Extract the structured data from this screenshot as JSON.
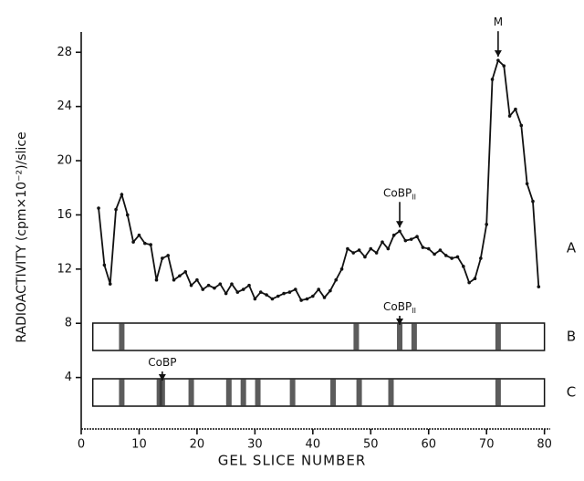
{
  "chart_data": {
    "type": "line",
    "x_label": "GEL SLICE NUMBER",
    "y_label": "RADIOACTIVITY (cpm×10⁻²)/slice",
    "xlim": [
      0,
      81
    ],
    "ylim": [
      0,
      29.5
    ],
    "xticks": [
      0,
      10,
      20,
      30,
      40,
      50,
      60,
      70,
      80
    ],
    "yticks": [
      4,
      8,
      12,
      16,
      20,
      24,
      28
    ],
    "series": [
      {
        "name": "A",
        "color": "#111111",
        "x": [
          3,
          4,
          5,
          6,
          7,
          8,
          9,
          10,
          11,
          12,
          13,
          14,
          15,
          16,
          17,
          18,
          19,
          20,
          21,
          22,
          23,
          24,
          25,
          26,
          27,
          28,
          29,
          30,
          31,
          32,
          33,
          34,
          35,
          36,
          37,
          38,
          39,
          40,
          41,
          42,
          43,
          44,
          45,
          46,
          47,
          48,
          49,
          50,
          51,
          52,
          53,
          54,
          55,
          56,
          57,
          58,
          59,
          60,
          61,
          62,
          63,
          64,
          65,
          66,
          67,
          68,
          69,
          70,
          71,
          72,
          73,
          74,
          75,
          76,
          77,
          78,
          79
        ],
        "values": [
          16.5,
          12.3,
          10.9,
          16.4,
          17.5,
          16,
          14,
          14.5,
          13.9,
          13.8,
          11.2,
          12.8,
          13,
          11.2,
          11.5,
          11.8,
          10.8,
          11.2,
          10.5,
          10.8,
          10.6,
          10.9,
          10.2,
          10.9,
          10.3,
          10.5,
          10.8,
          9.8,
          10.3,
          10.1,
          9.8,
          10,
          10.2,
          10.3,
          10.5,
          9.7,
          9.8,
          10,
          10.5,
          9.9,
          10.4,
          11.2,
          12,
          13.5,
          13.2,
          13.4,
          12.9,
          13.5,
          13.2,
          14,
          13.5,
          14.5,
          14.8,
          14.1,
          14.2,
          14.4,
          13.6,
          13.5,
          13.1,
          13.4,
          13,
          12.8,
          12.9,
          12.2,
          11,
          11.3,
          12.8,
          15.3,
          26,
          27.4,
          27,
          23.3,
          23.8,
          22.6,
          18.3,
          17,
          10.7
        ]
      }
    ],
    "gels": [
      {
        "name": "B",
        "bands": [
          7,
          47.5,
          55,
          57.5,
          72
        ]
      },
      {
        "name": "C",
        "bands": [
          7,
          13.5,
          14,
          19,
          25.5,
          28,
          30.5,
          36.5,
          43.5,
          48,
          53.5,
          72
        ]
      }
    ],
    "annotations": [
      {
        "text": "M",
        "x": 72
      },
      {
        "text": "CoBP",
        "subscript": "II",
        "x": 55
      },
      {
        "text": "CoBP",
        "subscript": "II",
        "x": 55,
        "gel": "B"
      },
      {
        "text": "CoBP",
        "x": 14,
        "gel": "C"
      }
    ]
  }
}
